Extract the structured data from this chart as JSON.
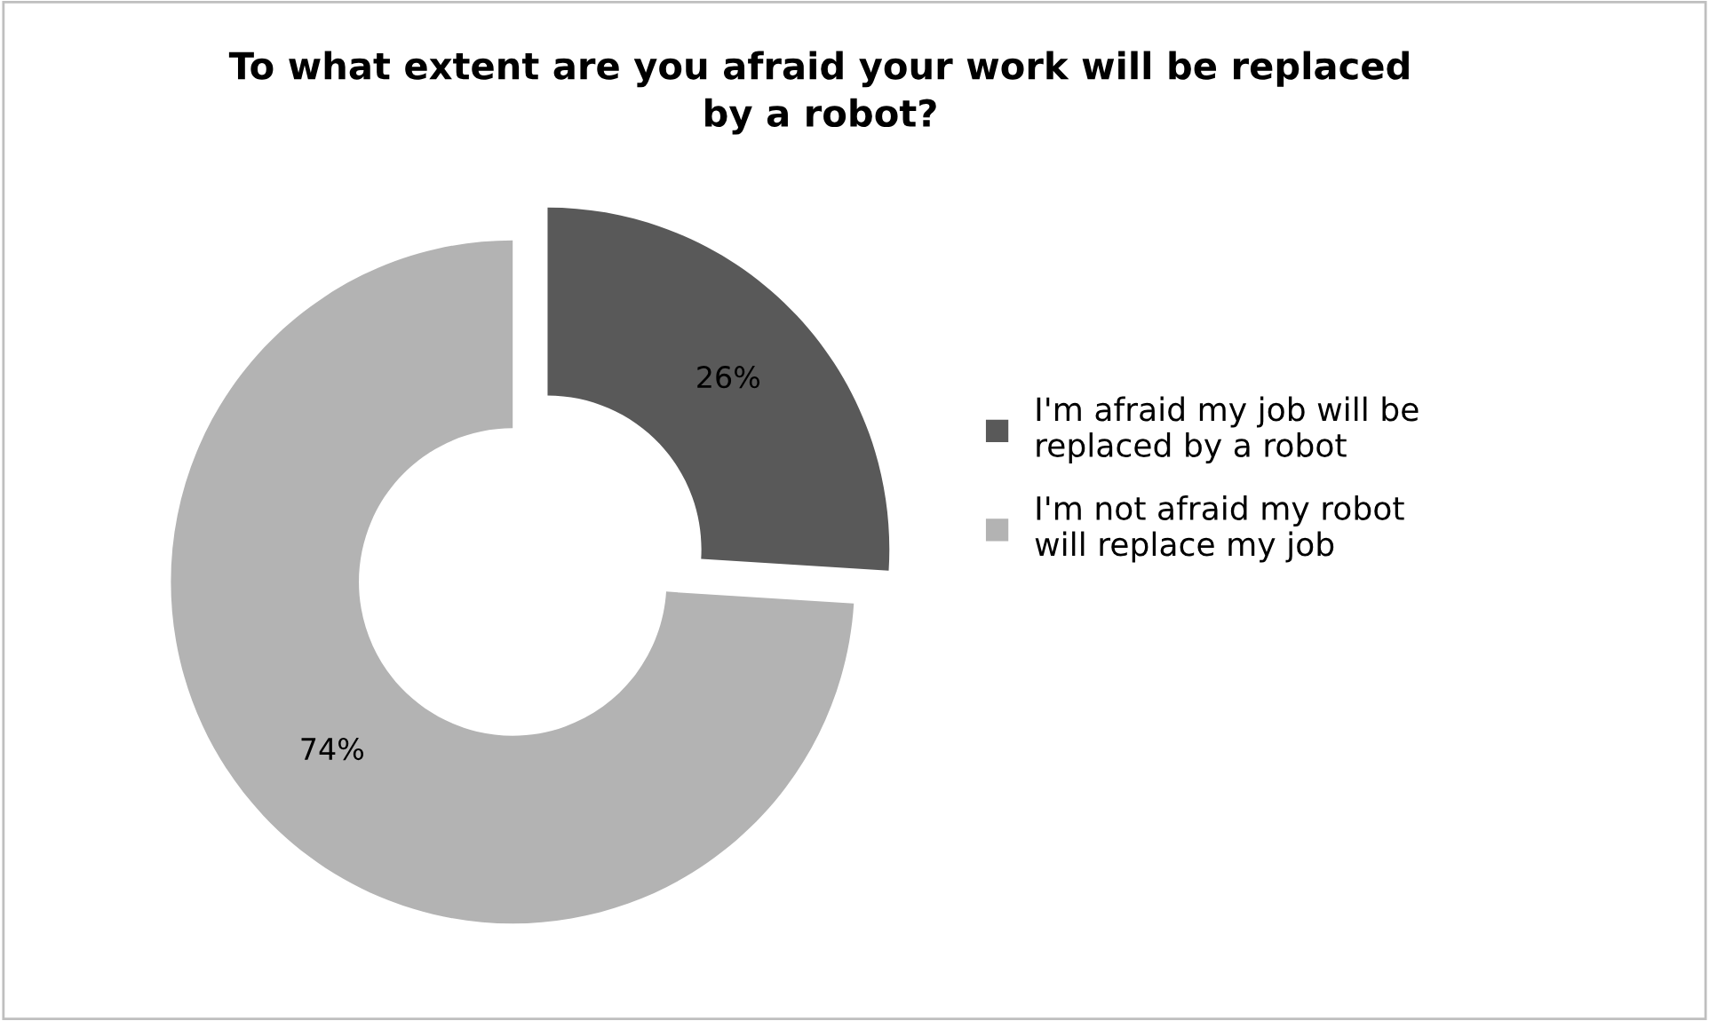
{
  "chart_data": {
    "type": "donut",
    "title": "To what extent are you afraid your work will be replaced by a robot?",
    "categories": [
      "I'm afraid my job will be replaced by a robot",
      "I'm not afraid my robot will replace my job"
    ],
    "values": [
      26,
      74
    ],
    "colors": [
      "#595959",
      "#b3b3b3"
    ],
    "value_labels": [
      "26%",
      "74%"
    ],
    "legend": "right"
  }
}
